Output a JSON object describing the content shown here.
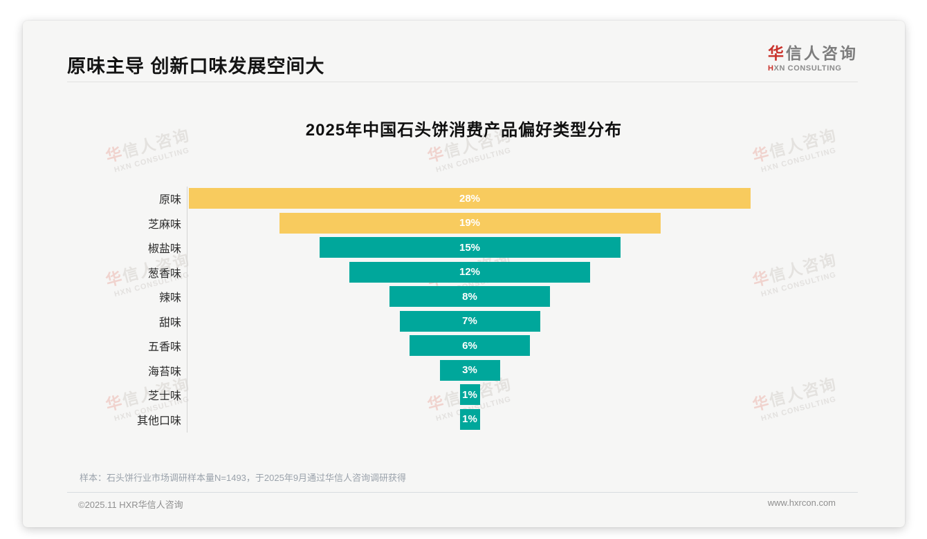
{
  "page": {
    "title": "原味主导 创新口味发展空间大",
    "footnote": "样本：石头饼行业市场调研样本量N=1493，于2025年9月通过华信人咨询调研获得",
    "footer_left": "©2025.11 HXR华信人咨询",
    "footer_right": "www.hxrcon.com"
  },
  "brand": {
    "logo_accent": "华",
    "logo_rest": "信人咨询",
    "logo_sub_accent": "H",
    "logo_sub_rest": "XN CONSULTING",
    "watermark_line1_accent": "华",
    "watermark_line1_rest": "信人咨询",
    "watermark_line2": "HXN CONSULTING"
  },
  "colors": {
    "accent_red": "#c9322b",
    "bar_yellow": "#f8cb5e",
    "bar_teal": "#00a79b",
    "card_background": "#f6f6f5"
  },
  "chart_data": {
    "type": "bar",
    "orientation": "horizontal-centered-funnel",
    "title": "2025年中国石头饼消费产品偏好类型分布",
    "categories": [
      "原味",
      "芝麻味",
      "椒盐味",
      "葱香味",
      "辣味",
      "甜味",
      "五香味",
      "海苔味",
      "芝士味",
      "其他口味"
    ],
    "values": [
      28,
      19,
      15,
      12,
      8,
      7,
      6,
      3,
      1,
      1
    ],
    "value_labels": [
      "28%",
      "19%",
      "15%",
      "12%",
      "8%",
      "7%",
      "6%",
      "3%",
      "1%",
      "1%"
    ],
    "unit": "%",
    "bar_colors": [
      "#f8cb5e",
      "#f8cb5e",
      "#00a79b",
      "#00a79b",
      "#00a79b",
      "#00a79b",
      "#00a79b",
      "#00a79b",
      "#00a79b",
      "#00a79b"
    ],
    "xlim": [
      0,
      28.2
    ],
    "grid": false,
    "legend": false,
    "value_label_position": "inside-center"
  }
}
